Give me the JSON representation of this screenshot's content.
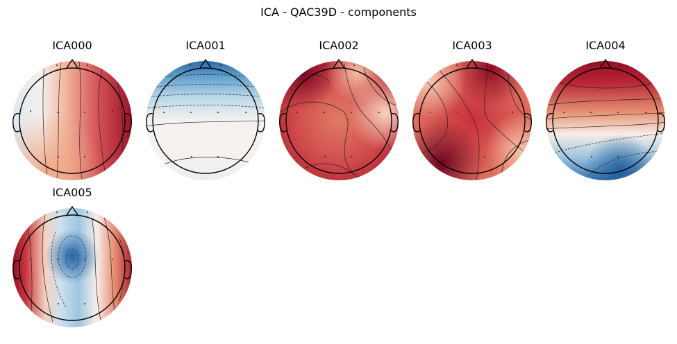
{
  "figure": {
    "title": "ICA - QAC39D - components"
  },
  "components": [
    {
      "label": "ICA000"
    },
    {
      "label": "ICA001"
    },
    {
      "label": "ICA002"
    },
    {
      "label": "ICA003"
    },
    {
      "label": "ICA004"
    },
    {
      "label": "ICA005"
    }
  ],
  "colormap": {
    "name": "RdBu_r",
    "positive": "#8b0a1e",
    "negative": "#1f5b9c",
    "neutral": "#f5f3f2"
  },
  "icons": {
    "head_outline": "head-outline-icon",
    "nose": "nose-icon",
    "ear": "ear-icon",
    "sensor": "sensor-dot"
  }
}
